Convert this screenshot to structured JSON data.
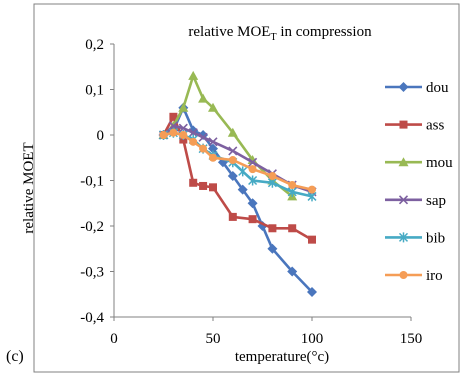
{
  "panel_tag": "(c)",
  "chart_data": {
    "type": "line",
    "title": "relative MOE",
    "title_subscript": "T",
    "title_suffix": " in compression",
    "xlabel": "temperature(°c)",
    "ylabel": "relative MOET",
    "xlim": [
      0,
      150
    ],
    "ylim": [
      -0.4,
      0.2
    ],
    "xticks": [
      0,
      50,
      100,
      150
    ],
    "yticks": [
      0.2,
      0.1,
      0,
      -0.1,
      -0.2,
      -0.3,
      -0.4
    ],
    "xtick_labels": [
      "0",
      "50",
      "100",
      "150"
    ],
    "ytick_labels": [
      "0,2",
      "0,1",
      "0",
      "-0,1",
      "-0,2",
      "-0,3",
      "-0,4"
    ],
    "grid": false,
    "legend_position": "right",
    "series": [
      {
        "name": "dou",
        "color": "#4a76bd",
        "marker": "diamond",
        "x": [
          25,
          30,
          35,
          40,
          45,
          50,
          55,
          60,
          65,
          70,
          75,
          80,
          90,
          100
        ],
        "y": [
          0,
          0.01,
          0.06,
          0.01,
          0,
          -0.03,
          -0.06,
          -0.09,
          -0.12,
          -0.15,
          -0.2,
          -0.25,
          -0.3,
          -0.345
        ]
      },
      {
        "name": "ass",
        "color": "#be4b48",
        "marker": "square",
        "x": [
          25,
          30,
          35,
          40,
          45,
          50,
          60,
          70,
          80,
          90,
          100
        ],
        "y": [
          0,
          0.04,
          -0.01,
          -0.105,
          -0.112,
          -0.115,
          -0.18,
          -0.185,
          -0.205,
          -0.205,
          -0.23
        ]
      },
      {
        "name": "mou",
        "color": "#98b954",
        "marker": "triangle",
        "x": [
          25,
          30,
          35,
          40,
          45,
          50,
          60,
          70,
          80,
          90
        ],
        "y": [
          0,
          0.02,
          0.06,
          0.13,
          0.08,
          0.06,
          0.005,
          -0.055,
          -0.1,
          -0.135
        ]
      },
      {
        "name": "sap",
        "color": "#7d60a0",
        "marker": "x",
        "x": [
          25,
          30,
          35,
          40,
          45,
          50,
          60,
          70,
          80,
          90,
          100
        ],
        "y": [
          0,
          0.02,
          0.015,
          0.005,
          -0.005,
          -0.015,
          -0.035,
          -0.06,
          -0.085,
          -0.11,
          -0.125
        ]
      },
      {
        "name": "bib",
        "color": "#46aac4",
        "marker": "star",
        "x": [
          25,
          30,
          35,
          40,
          45,
          50,
          60,
          65,
          70,
          80,
          90,
          100
        ],
        "y": [
          0,
          0.005,
          0,
          -0.01,
          -0.03,
          -0.045,
          -0.06,
          -0.08,
          -0.1,
          -0.105,
          -0.125,
          -0.135
        ]
      },
      {
        "name": "iro",
        "color": "#f59d56",
        "marker": "circle",
        "x": [
          25,
          30,
          35,
          40,
          45,
          50,
          60,
          70,
          80,
          90,
          100
        ],
        "y": [
          0,
          0.005,
          0,
          -0.015,
          -0.03,
          -0.05,
          -0.055,
          -0.075,
          -0.09,
          -0.11,
          -0.12
        ]
      }
    ]
  }
}
